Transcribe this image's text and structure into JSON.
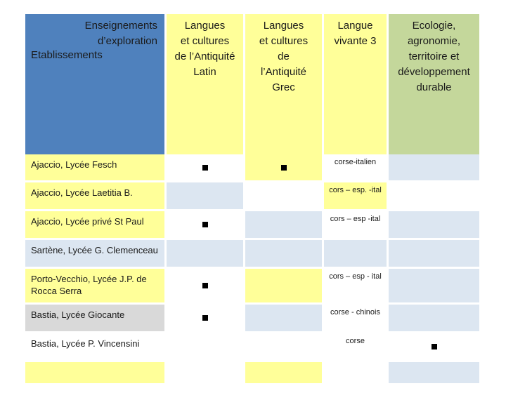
{
  "header": {
    "corner_top": [
      "Enseignements",
      "d’exploration"
    ],
    "corner_bottom": "Etablissements",
    "columns": [
      [
        "Langues",
        "et cultures",
        "de l’Antiquité",
        "Latin"
      ],
      [
        "Langues",
        "et cultures",
        "de",
        "l’Antiquité",
        "Grec"
      ],
      [
        "Langue",
        "vivante 3"
      ],
      [
        "Ecologie,",
        "agronomie,",
        "territoire et",
        "développement",
        "durable"
      ]
    ]
  },
  "mark_symbol": "filled-square",
  "rows": [
    {
      "name": "Ajaccio, Lycée Fesch",
      "latin": true,
      "grec": true,
      "lv3": "corse-italien",
      "eco": false
    },
    {
      "name": "Ajaccio, Lycée Laetitia B.",
      "latin": false,
      "grec": false,
      "lv3": "cors – esp. -ital",
      "eco": false
    },
    {
      "name": "Ajaccio, Lycée privé St Paul",
      "latin": true,
      "grec": false,
      "lv3": "cors – esp -ital",
      "eco": false
    },
    {
      "name": "Sartène, Lycée G. Clemenceau",
      "latin": false,
      "grec": false,
      "lv3": "",
      "eco": false
    },
    {
      "name": "Porto-Vecchio, Lycée J.P. de Rocca Serra",
      "latin": true,
      "grec": false,
      "lv3": "cors – esp - ital",
      "eco": false
    },
    {
      "name": "Bastia, Lycée Giocante",
      "latin": true,
      "grec": false,
      "lv3": "corse - chinois",
      "eco": false
    },
    {
      "name": "Bastia, Lycée P. Vincensini",
      "latin": false,
      "grec": false,
      "lv3": "corse",
      "eco": true
    }
  ]
}
